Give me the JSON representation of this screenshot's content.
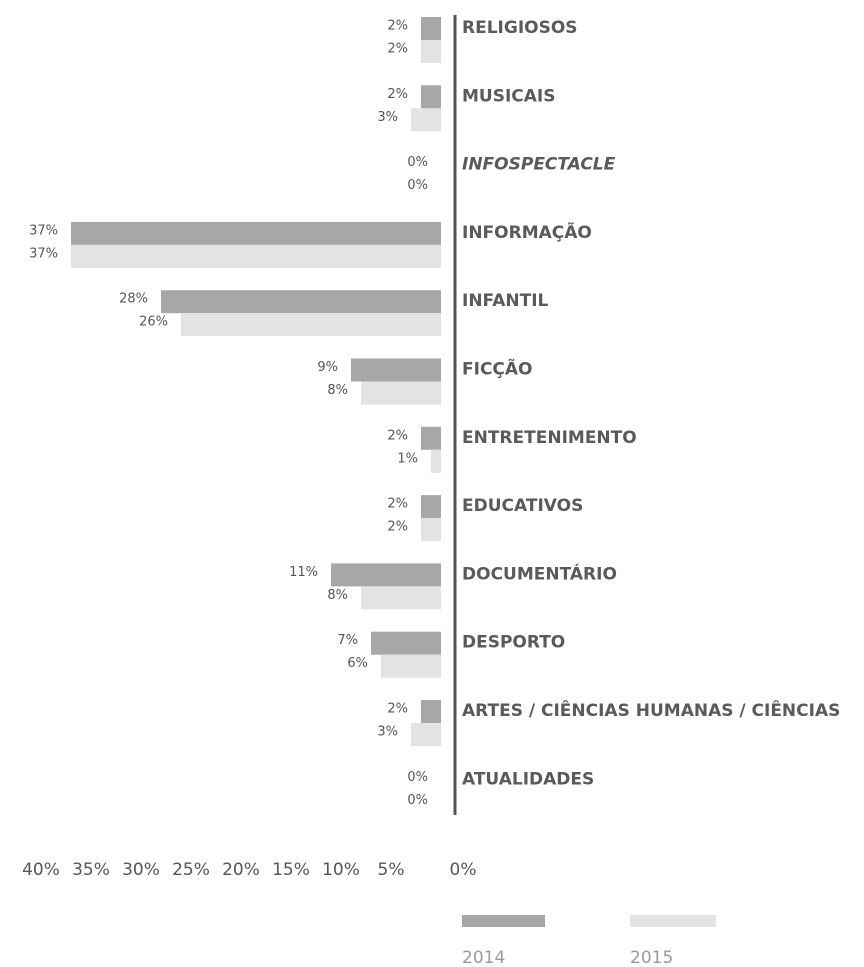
{
  "chart_data": {
    "type": "bar",
    "orientation": "horizontal",
    "categories": [
      "RELIGIOSOS",
      "MUSICAIS",
      "INFOSPECTACLE",
      "INFORMAÇÃO",
      "INFANTIL",
      "FICÇÃO",
      "ENTRETENIMENTO",
      "EDUCATIVOS",
      "DOCUMENTÁRIO",
      "DESPORTO",
      "ARTES / CIÊNCIAS HUMANAS / CIÊNCIAS",
      "ATUALIDADES"
    ],
    "series": [
      {
        "name": "2014",
        "color": "#a7a7a9",
        "values": [
          2,
          2,
          0,
          37,
          28,
          9,
          2,
          2,
          11,
          7,
          2,
          0
        ],
        "value_labels": [
          "2%",
          "2%",
          "0%",
          "37%",
          "28%",
          "9%",
          "2%",
          "2%",
          "11%",
          "7%",
          "2%",
          "0%"
        ]
      },
      {
        "name": "2015",
        "color": "#e3e3e4",
        "values": [
          2,
          3,
          0,
          37,
          26,
          8,
          1,
          2,
          8,
          6,
          3,
          0
        ],
        "value_labels": [
          "2%",
          "3%",
          "0%",
          "37%",
          "26%",
          "8%",
          "1%",
          "2%",
          "8%",
          "6%",
          "3%",
          "0%"
        ]
      }
    ],
    "xlim": [
      40,
      0
    ],
    "xticks": [
      {
        "value": 40,
        "label": "40%"
      },
      {
        "value": 35,
        "label": "35%"
      },
      {
        "value": 30,
        "label": "30%"
      },
      {
        "value": 25,
        "label": "25%"
      },
      {
        "value": 20,
        "label": "20%"
      },
      {
        "value": 15,
        "label": "15%"
      },
      {
        "value": 10,
        "label": "10%"
      },
      {
        "value": 5,
        "label": "5%"
      },
      {
        "value": 0,
        "label": "0%"
      }
    ],
    "legend": "bottom-right"
  }
}
